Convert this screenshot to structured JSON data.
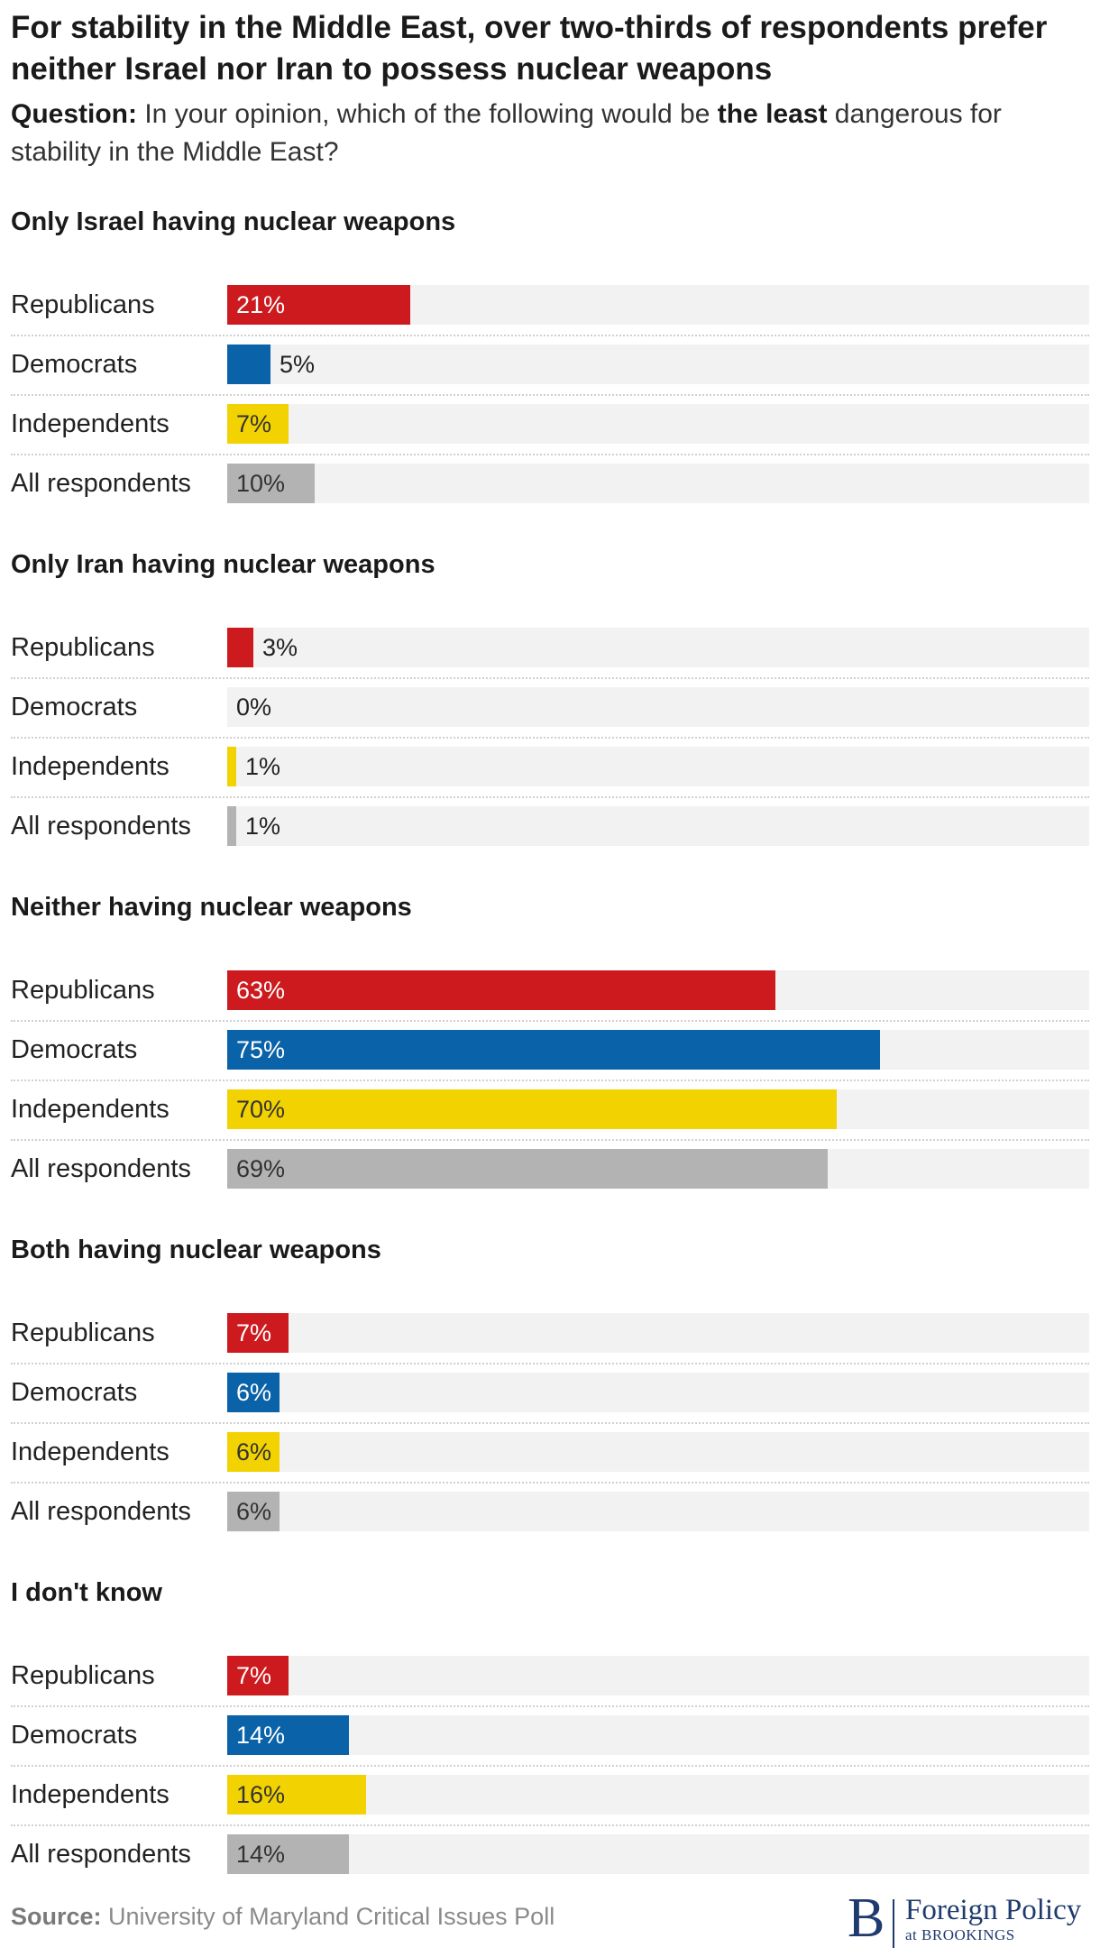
{
  "header": {
    "title": "For stability in the Middle East, over two-thirds of respondents prefer neither Israel nor Iran to possess nuclear weapons",
    "question_label": "Question:",
    "question_pre": " In your opinion, which of the following would be ",
    "question_bold": "the least",
    "question_post": " dangerous for stability in the Middle East?"
  },
  "colors": {
    "Republicans": "#cc1a1e",
    "Democrats": "#0a62a8",
    "Independents": "#f2d200",
    "All respondents": "#b3b3b3",
    "track": "#f2f2f2"
  },
  "chart_data": {
    "type": "bar",
    "orientation": "horizontal",
    "xlim": [
      0,
      100
    ],
    "value_suffix": "%",
    "categories": [
      "Republicans",
      "Democrats",
      "Independents",
      "All respondents"
    ],
    "groups": [
      {
        "title": "Only Israel having nuclear weapons",
        "values": [
          21,
          5,
          7,
          10
        ]
      },
      {
        "title": "Only Iran having nuclear weapons",
        "values": [
          3,
          0,
          1,
          1
        ]
      },
      {
        "title": "Neither having nuclear weapons",
        "values": [
          63,
          75,
          70,
          69
        ]
      },
      {
        "title": "Both having nuclear weapons",
        "values": [
          7,
          6,
          6,
          6
        ]
      },
      {
        "title": "I don't know",
        "values": [
          7,
          14,
          16,
          14
        ]
      }
    ]
  },
  "footer": {
    "source_label": "Source:",
    "source_text": "University of Maryland Critical Issues Poll",
    "logo_letter": "B",
    "logo_line1": "Foreign Policy",
    "logo_line2": "at BROOKINGS"
  }
}
